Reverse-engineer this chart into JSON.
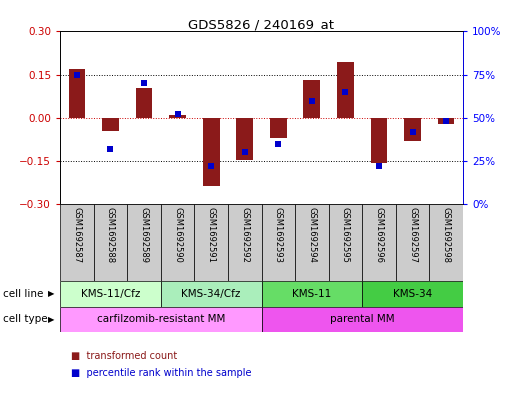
{
  "title": "GDS5826 / 240169_at",
  "samples": [
    "GSM1692587",
    "GSM1692588",
    "GSM1692589",
    "GSM1692590",
    "GSM1692591",
    "GSM1692592",
    "GSM1692593",
    "GSM1692594",
    "GSM1692595",
    "GSM1692596",
    "GSM1692597",
    "GSM1692598"
  ],
  "transformed_count": [
    0.17,
    -0.045,
    0.105,
    0.01,
    -0.235,
    -0.145,
    -0.07,
    0.13,
    0.195,
    -0.155,
    -0.08,
    -0.02
  ],
  "percentile_rank": [
    75,
    32,
    70,
    52,
    22,
    30,
    35,
    60,
    65,
    22,
    42,
    48
  ],
  "ylim_left": [
    -0.3,
    0.3
  ],
  "ylim_right": [
    0,
    100
  ],
  "yticks_left": [
    -0.3,
    -0.15,
    0,
    0.15,
    0.3
  ],
  "yticks_right": [
    0,
    25,
    50,
    75,
    100
  ],
  "bar_color": "#8B1A1A",
  "dot_color": "#0000CC",
  "zero_line_color": "#CC0000",
  "dotted_line_color": "#000000",
  "bg_color": "#FFFFFF",
  "cell_line_groups": [
    {
      "label": "KMS-11/Cfz",
      "start": 0,
      "end": 3,
      "color": "#CCFFCC"
    },
    {
      "label": "KMS-34/Cfz",
      "start": 3,
      "end": 6,
      "color": "#AAEEBB"
    },
    {
      "label": "KMS-11",
      "start": 6,
      "end": 9,
      "color": "#66DD66"
    },
    {
      "label": "KMS-34",
      "start": 9,
      "end": 12,
      "color": "#44CC44"
    }
  ],
  "cell_type_groups": [
    {
      "label": "carfilzomib-resistant MM",
      "start": 0,
      "end": 6,
      "color": "#FF99FF"
    },
    {
      "label": "parental MM",
      "start": 6,
      "end": 12,
      "color": "#EE55EE"
    }
  ],
  "bar_width": 0.5,
  "sample_fontsize": 6.0,
  "cell_label_fontsize": 7.5
}
